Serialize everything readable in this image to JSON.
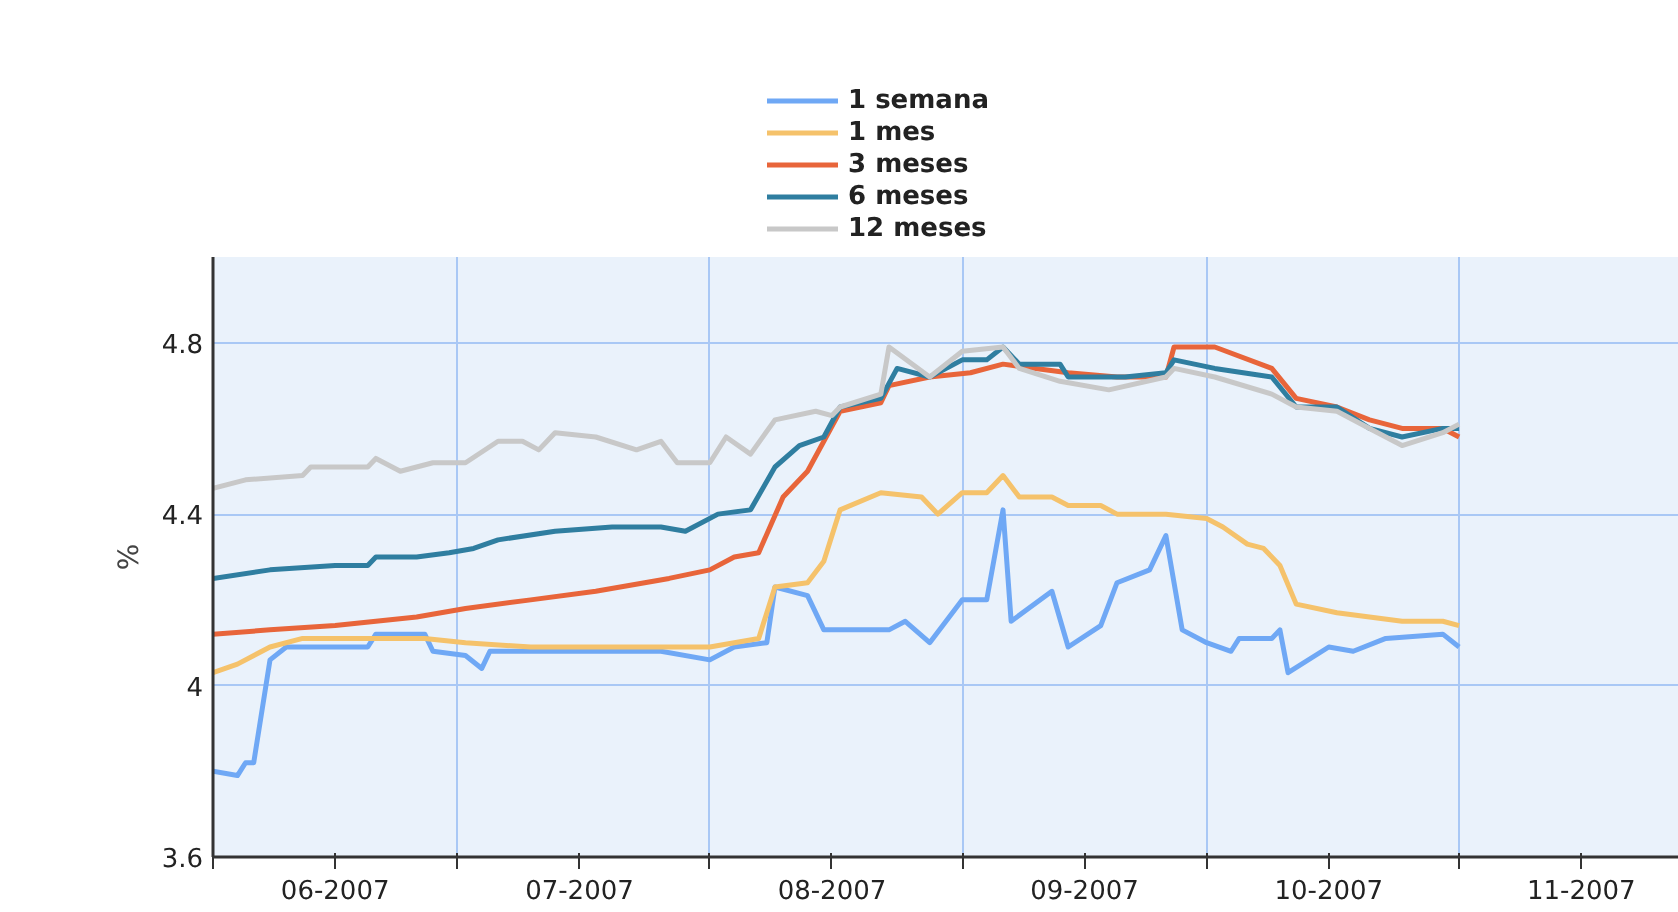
{
  "chart_data": {
    "type": "line",
    "ylabel": "%",
    "xlim": [
      "2007-06-01",
      "2007-11-28"
    ],
    "ylim": [
      3.6,
      5.0
    ],
    "yticks": [
      3.6,
      4,
      4.4,
      4.8
    ],
    "xticks": [
      {
        "value": "2007-06-01",
        "label": null
      },
      {
        "value": "2007-06-16",
        "label": "06-2007"
      },
      {
        "value": "2007-07-01",
        "label": null
      },
      {
        "value": "2007-07-16",
        "label": "07-2007"
      },
      {
        "value": "2007-08-01",
        "label": null
      },
      {
        "value": "2007-08-16",
        "label": "08-2007"
      },
      {
        "value": "2007-09-01",
        "label": null
      },
      {
        "value": "2007-09-16",
        "label": "09-2007"
      },
      {
        "value": "2007-10-01",
        "label": null
      },
      {
        "value": "2007-10-16",
        "label": "10-2007"
      },
      {
        "value": "2007-11-01",
        "label": null
      },
      {
        "value": "2007-11-16",
        "label": "11-2007"
      }
    ],
    "grid": true,
    "legend": "top",
    "line_style": "solid",
    "series": [
      {
        "name": "1 semana",
        "color": "#6fa8f5",
        "x": [
          "2007-06-01",
          "2007-06-04",
          "2007-06-05",
          "2007-06-06",
          "2007-06-08",
          "2007-06-10",
          "2007-06-20",
          "2007-06-21",
          "2007-06-27",
          "2007-06-28",
          "2007-07-02",
          "2007-07-04",
          "2007-07-05",
          "2007-07-26",
          "2007-08-01",
          "2007-08-04",
          "2007-08-08",
          "2007-08-09",
          "2007-08-13",
          "2007-08-15",
          "2007-08-23",
          "2007-08-25",
          "2007-08-28",
          "2007-09-01",
          "2007-09-04",
          "2007-09-06",
          "2007-09-07",
          "2007-09-12",
          "2007-09-14",
          "2007-09-18",
          "2007-09-20",
          "2007-09-24",
          "2007-09-26",
          "2007-09-28",
          "2007-10-01",
          "2007-10-04",
          "2007-10-05",
          "2007-10-09",
          "2007-10-10",
          "2007-10-11",
          "2007-10-16",
          "2007-10-19",
          "2007-10-23",
          "2007-10-30",
          "2007-11-01"
        ],
        "values": [
          3.8,
          3.79,
          3.82,
          3.82,
          4.06,
          4.09,
          4.09,
          4.12,
          4.12,
          4.08,
          4.07,
          4.04,
          4.08,
          4.08,
          4.06,
          4.09,
          4.1,
          4.23,
          4.21,
          4.13,
          4.13,
          4.15,
          4.1,
          4.2,
          4.2,
          4.41,
          4.15,
          4.22,
          4.09,
          4.14,
          4.24,
          4.27,
          4.35,
          4.13,
          4.1,
          4.08,
          4.11,
          4.11,
          4.13,
          4.03,
          4.09,
          4.08,
          4.11,
          4.12,
          4.09
        ]
      },
      {
        "name": "1 mes",
        "color": "#f5c26b",
        "x": [
          "2007-06-01",
          "2007-06-04",
          "2007-06-08",
          "2007-06-12",
          "2007-06-27",
          "2007-07-02",
          "2007-07-10",
          "2007-07-27",
          "2007-08-01",
          "2007-08-07",
          "2007-08-09",
          "2007-08-13",
          "2007-08-15",
          "2007-08-17",
          "2007-08-22",
          "2007-08-27",
          "2007-08-29",
          "2007-09-01",
          "2007-09-04",
          "2007-09-06",
          "2007-09-08",
          "2007-09-12",
          "2007-09-14",
          "2007-09-18",
          "2007-09-20",
          "2007-09-26",
          "2007-10-01",
          "2007-10-03",
          "2007-10-06",
          "2007-10-08",
          "2007-10-10",
          "2007-10-12",
          "2007-10-17",
          "2007-10-25",
          "2007-10-30",
          "2007-11-01"
        ],
        "values": [
          4.03,
          4.05,
          4.09,
          4.11,
          4.11,
          4.1,
          4.09,
          4.09,
          4.09,
          4.11,
          4.23,
          4.24,
          4.29,
          4.41,
          4.45,
          4.44,
          4.4,
          4.45,
          4.45,
          4.49,
          4.44,
          4.44,
          4.42,
          4.42,
          4.4,
          4.4,
          4.39,
          4.37,
          4.33,
          4.32,
          4.28,
          4.19,
          4.17,
          4.15,
          4.15,
          4.14
        ]
      },
      {
        "name": "3 meses",
        "color": "#e8653a",
        "x": [
          "2007-06-01",
          "2007-06-08",
          "2007-06-16",
          "2007-06-26",
          "2007-07-02",
          "2007-07-10",
          "2007-07-18",
          "2007-07-27",
          "2007-08-01",
          "2007-08-04",
          "2007-08-07",
          "2007-08-10",
          "2007-08-13",
          "2007-08-15",
          "2007-08-17",
          "2007-08-22",
          "2007-08-23",
          "2007-08-28",
          "2007-09-02",
          "2007-09-06",
          "2007-09-10",
          "2007-09-14",
          "2007-09-20",
          "2007-09-26",
          "2007-09-27",
          "2007-10-02",
          "2007-10-09",
          "2007-10-12",
          "2007-10-17",
          "2007-10-21",
          "2007-10-25",
          "2007-10-30",
          "2007-11-01"
        ],
        "values": [
          4.12,
          4.13,
          4.14,
          4.16,
          4.18,
          4.2,
          4.22,
          4.25,
          4.27,
          4.3,
          4.31,
          4.44,
          4.5,
          4.57,
          4.64,
          4.66,
          4.7,
          4.72,
          4.73,
          4.75,
          4.74,
          4.73,
          4.72,
          4.72,
          4.79,
          4.79,
          4.74,
          4.67,
          4.65,
          4.62,
          4.6,
          4.6,
          4.58
        ]
      },
      {
        "name": "6 meses",
        "color": "#2f7ea0",
        "x": [
          "2007-06-01",
          "2007-06-08",
          "2007-06-16",
          "2007-06-20",
          "2007-06-21",
          "2007-06-26",
          "2007-06-30",
          "2007-07-03",
          "2007-07-06",
          "2007-07-13",
          "2007-07-20",
          "2007-07-26",
          "2007-07-29",
          "2007-08-02",
          "2007-08-06",
          "2007-08-09",
          "2007-08-12",
          "2007-08-15",
          "2007-08-17",
          "2007-08-22",
          "2007-08-24",
          "2007-08-28",
          "2007-09-01",
          "2007-09-04",
          "2007-09-06",
          "2007-09-08",
          "2007-09-13",
          "2007-09-14",
          "2007-09-21",
          "2007-09-26",
          "2007-09-27",
          "2007-10-02",
          "2007-10-09",
          "2007-10-12",
          "2007-10-17",
          "2007-10-21",
          "2007-10-25",
          "2007-10-30",
          "2007-11-01"
        ],
        "values": [
          4.25,
          4.27,
          4.28,
          4.28,
          4.3,
          4.3,
          4.31,
          4.32,
          4.34,
          4.36,
          4.37,
          4.37,
          4.36,
          4.4,
          4.41,
          4.51,
          4.56,
          4.58,
          4.65,
          4.67,
          4.74,
          4.72,
          4.76,
          4.76,
          4.79,
          4.75,
          4.75,
          4.72,
          4.72,
          4.73,
          4.76,
          4.74,
          4.72,
          4.65,
          4.65,
          4.6,
          4.58,
          4.6,
          4.6
        ]
      },
      {
        "name": "12 meses",
        "color": "#c8c8c8",
        "x": [
          "2007-06-01",
          "2007-06-05",
          "2007-06-12",
          "2007-06-13",
          "2007-06-20",
          "2007-06-21",
          "2007-06-24",
          "2007-06-28",
          "2007-07-02",
          "2007-07-06",
          "2007-07-09",
          "2007-07-11",
          "2007-07-13",
          "2007-07-18",
          "2007-07-23",
          "2007-07-26",
          "2007-07-28",
          "2007-08-01",
          "2007-08-03",
          "2007-08-06",
          "2007-08-09",
          "2007-08-14",
          "2007-08-16",
          "2007-08-17",
          "2007-08-22",
          "2007-08-23",
          "2007-08-28",
          "2007-09-01",
          "2007-09-06",
          "2007-09-08",
          "2007-09-13",
          "2007-09-19",
          "2007-09-26",
          "2007-09-27",
          "2007-10-02",
          "2007-10-09",
          "2007-10-12",
          "2007-10-17",
          "2007-10-21",
          "2007-10-25",
          "2007-10-30",
          "2007-11-01"
        ],
        "values": [
          4.46,
          4.48,
          4.49,
          4.51,
          4.51,
          4.53,
          4.5,
          4.52,
          4.52,
          4.57,
          4.57,
          4.55,
          4.59,
          4.58,
          4.55,
          4.57,
          4.52,
          4.52,
          4.58,
          4.54,
          4.62,
          4.64,
          4.63,
          4.65,
          4.68,
          4.79,
          4.72,
          4.78,
          4.79,
          4.74,
          4.71,
          4.69,
          4.72,
          4.74,
          4.72,
          4.68,
          4.65,
          4.64,
          4.6,
          4.56,
          4.59,
          4.61
        ]
      }
    ]
  }
}
